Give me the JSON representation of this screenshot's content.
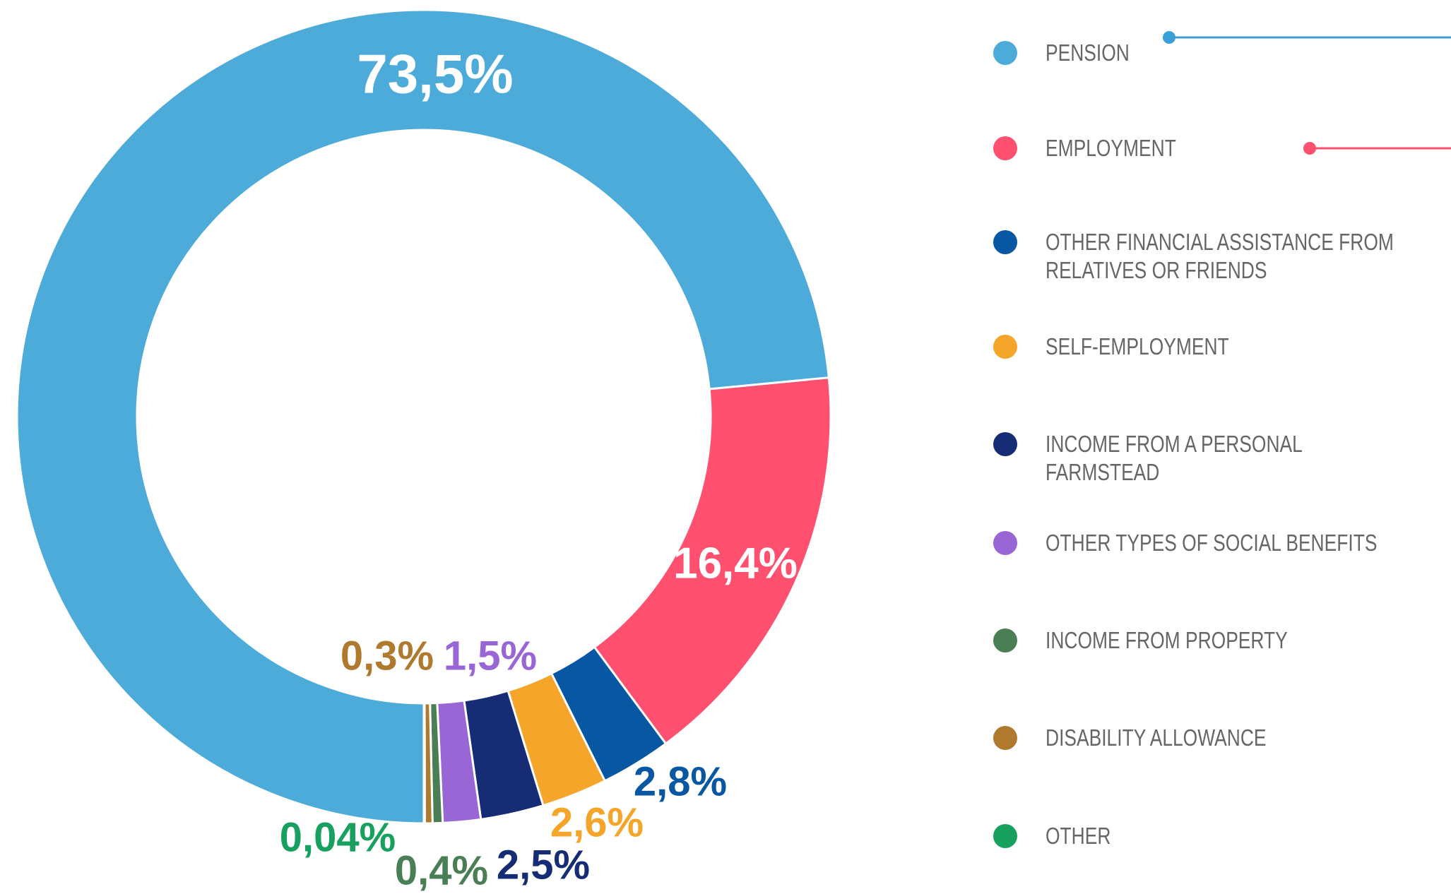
{
  "chart_data": {
    "type": "donut",
    "series": [
      {
        "name": "PENSION",
        "color": "#4dabd9",
        "values": [
          73.5
        ],
        "value_labels": [
          "73,5%"
        ]
      },
      {
        "name": "EMPLOYMENT",
        "color": "#ff5070",
        "values": [
          16.4
        ],
        "value_labels": [
          "16,4%"
        ]
      },
      {
        "name": "OTHER FINANCIAL ASSISTANCE FROM RELATIVES OR FRIENDS",
        "color": "#0757a3",
        "values": [
          2.8
        ],
        "value_labels": [
          "2,8%"
        ]
      },
      {
        "name": "SELF-EMPLOYMENT",
        "color": "#f5a52a",
        "values": [
          2.6
        ],
        "value_labels": [
          "2,6%"
        ]
      },
      {
        "name": "INCOME FROM A PERSONAL FARMSTEAD",
        "color": "#162d75",
        "values": [
          2.5
        ],
        "value_labels": [
          "2,5%"
        ]
      },
      {
        "name": "OTHER TYPES OF SOCIAL BENEFITS",
        "color": "#9966d6",
        "values": [
          1.5
        ],
        "value_labels": [
          "1,5%"
        ]
      },
      {
        "name": "INCOME FROM PROPERTY",
        "color": "#4a7f55",
        "values": [
          0.4
        ],
        "value_labels": [
          "0,4%"
        ]
      },
      {
        "name": "DISABILITY ALLOWANCE",
        "color": "#b07a2e",
        "values": [
          0.3
        ],
        "value_labels": [
          "0,3%"
        ]
      },
      {
        "name": "OTHER",
        "color": "#17a05e",
        "values": [
          0.04
        ],
        "value_labels": [
          "0,04%"
        ]
      }
    ]
  }
}
